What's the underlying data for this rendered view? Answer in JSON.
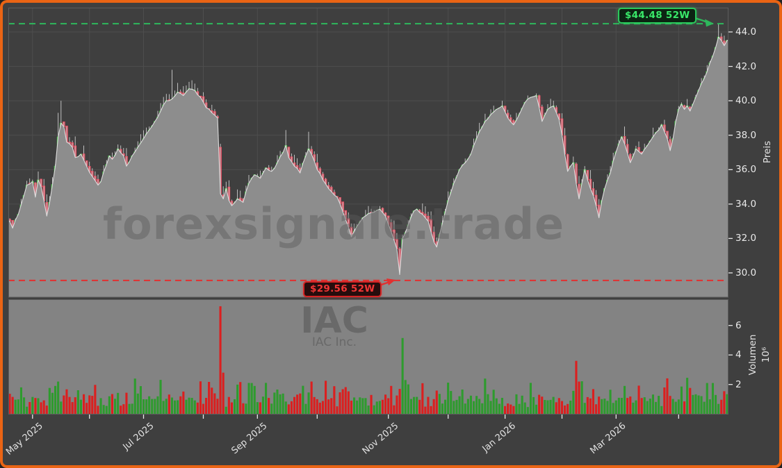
{
  "watermarks": {
    "brand": "forexsignale.trade",
    "symbol": "IAC",
    "symbol_name": "IAC Inc."
  },
  "colors": {
    "figure_border": "#ea6414",
    "background": "#3f3f3f",
    "volume_background": "#838383",
    "grid": "#4e4e4e",
    "frame": "#5c5c5c",
    "area_fill": "#8d8d8d",
    "area_edge": "#dcdcdc",
    "candle_up_stroke": "#4ec94e",
    "candle_up_fill": "rgba(60,190,60,0.38)",
    "candle_down_stroke": "#f25266",
    "candle_down_fill": "rgba(250,145,158,0.55)",
    "wick": "#cfcfcf",
    "volume_up": "#2e9b2e",
    "volume_down": "#db1f1f",
    "high_line": "#2eb85c",
    "low_line": "#e23030",
    "axis_text": "#e9e9e9",
    "tick_mark": "#e8e8e8",
    "watermark_text": "rgba(90,90,90,0.45)",
    "symbol_watermark_text": "rgba(80,80,80,0.5)"
  },
  "chart_data": {
    "type": "candlestick_with_volume",
    "symbol": "IAC",
    "company": "IAC Inc.",
    "watermark": "forexsignale.trade",
    "price_axis": {
      "label": "Preis",
      "ticks": [
        {
          "value": 44,
          "label": "44.0"
        },
        {
          "value": 42,
          "label": "42.0"
        },
        {
          "value": 40,
          "label": "40.0"
        },
        {
          "value": 38,
          "label": "38.0"
        },
        {
          "value": 36,
          "label": "36.0"
        },
        {
          "value": 34,
          "label": "34.0"
        },
        {
          "value": 32,
          "label": "32.0"
        },
        {
          "value": 30,
          "label": "30.0"
        }
      ]
    },
    "volume_axis": {
      "label": "Volumen",
      "exponent_label": "10⁶",
      "ticks": [
        {
          "value": 6,
          "label": "6"
        },
        {
          "value": 4,
          "label": "4"
        },
        {
          "value": 2,
          "label": "2"
        }
      ]
    },
    "x_axis": {
      "ticks": [
        {
          "day": 8,
          "label": "May 2025"
        },
        {
          "day": 28,
          "label": ""
        },
        {
          "day": 47,
          "label": "Jul 2025"
        },
        {
          "day": 68,
          "label": ""
        },
        {
          "day": 87,
          "label": "Sep 2025"
        },
        {
          "day": 108,
          "label": ""
        },
        {
          "day": 133,
          "label": "Nov 2025"
        },
        {
          "day": 154,
          "label": ""
        },
        {
          "day": 174,
          "label": "Jan 2026"
        },
        {
          "day": 194,
          "label": ""
        },
        {
          "day": 213,
          "label": "Mar 2026"
        },
        {
          "day": 235,
          "label": ""
        }
      ]
    },
    "annotations": {
      "high": {
        "label": "$44.48 52W",
        "price": 44.48,
        "day": 249
      },
      "low": {
        "label": "$29.56 52W",
        "price": 29.56,
        "day": 137
      }
    },
    "candle_count": 253,
    "close_keypoints": [
      [
        0,
        33.0
      ],
      [
        1,
        32.6
      ],
      [
        3,
        33.4
      ],
      [
        5,
        34.5
      ],
      [
        6,
        35.1
      ],
      [
        8,
        35.3
      ],
      [
        9,
        34.4
      ],
      [
        10,
        35.4
      ],
      [
        11,
        35.0
      ],
      [
        13,
        33.3
      ],
      [
        14,
        34.1
      ],
      [
        16,
        36.2
      ],
      [
        17,
        37.9
      ],
      [
        18,
        38.7
      ],
      [
        19,
        38.5
      ],
      [
        20,
        37.6
      ],
      [
        22,
        37.3
      ],
      [
        23,
        36.7
      ],
      [
        25,
        36.9
      ],
      [
        27,
        36.2
      ],
      [
        29,
        35.6
      ],
      [
        31,
        35.1
      ],
      [
        32,
        35.3
      ],
      [
        34,
        36.3
      ],
      [
        35,
        36.8
      ],
      [
        36,
        36.6
      ],
      [
        38,
        37.2
      ],
      [
        40,
        36.8
      ],
      [
        41,
        36.2
      ],
      [
        43,
        36.8
      ],
      [
        45,
        37.3
      ],
      [
        47,
        37.8
      ],
      [
        49,
        38.3
      ],
      [
        51,
        38.8
      ],
      [
        53,
        39.4
      ],
      [
        55,
        40.0
      ],
      [
        57,
        40.1
      ],
      [
        59,
        40.5
      ],
      [
        61,
        40.3
      ],
      [
        63,
        40.7
      ],
      [
        65,
        40.6
      ],
      [
        67,
        40.2
      ],
      [
        69,
        39.6
      ],
      [
        71,
        39.3
      ],
      [
        73,
        39.0
      ],
      [
        74,
        34.6
      ],
      [
        75,
        34.3
      ],
      [
        76,
        34.9
      ],
      [
        77,
        34.2
      ],
      [
        78,
        33.9
      ],
      [
        80,
        34.3
      ],
      [
        82,
        34.1
      ],
      [
        84,
        35.2
      ],
      [
        86,
        35.7
      ],
      [
        88,
        35.5
      ],
      [
        90,
        36.1
      ],
      [
        92,
        35.9
      ],
      [
        94,
        36.4
      ],
      [
        96,
        37.0
      ],
      [
        97,
        37.4
      ],
      [
        98,
        36.7
      ],
      [
        100,
        36.2
      ],
      [
        102,
        35.8
      ],
      [
        104,
        36.8
      ],
      [
        105,
        37.2
      ],
      [
        106,
        36.9
      ],
      [
        108,
        36.0
      ],
      [
        110,
        35.4
      ],
      [
        112,
        34.9
      ],
      [
        115,
        34.4
      ],
      [
        118,
        33.1
      ],
      [
        120,
        32.1
      ],
      [
        122,
        32.7
      ],
      [
        124,
        33.2
      ],
      [
        127,
        33.5
      ],
      [
        130,
        33.7
      ],
      [
        132,
        33.3
      ],
      [
        134,
        32.4
      ],
      [
        136,
        31.4
      ],
      [
        137,
        29.9
      ],
      [
        138,
        32.0
      ],
      [
        140,
        32.8
      ],
      [
        142,
        33.6
      ],
      [
        143,
        33.7
      ],
      [
        145,
        33.4
      ],
      [
        147,
        33.0
      ],
      [
        149,
        31.8
      ],
      [
        150,
        31.5
      ],
      [
        152,
        32.9
      ],
      [
        154,
        34.2
      ],
      [
        156,
        35.2
      ],
      [
        158,
        36.0
      ],
      [
        160,
        36.4
      ],
      [
        162,
        36.9
      ],
      [
        164,
        37.8
      ],
      [
        165,
        38.2
      ],
      [
        167,
        38.8
      ],
      [
        169,
        39.2
      ],
      [
        171,
        39.5
      ],
      [
        173,
        39.7
      ],
      [
        175,
        39.0
      ],
      [
        177,
        38.6
      ],
      [
        179,
        39.2
      ],
      [
        181,
        39.9
      ],
      [
        183,
        40.2
      ],
      [
        185,
        40.3
      ],
      [
        187,
        38.8
      ],
      [
        189,
        39.5
      ],
      [
        191,
        39.7
      ],
      [
        193,
        38.9
      ],
      [
        194,
        38.0
      ],
      [
        195,
        36.9
      ],
      [
        196,
        35.9
      ],
      [
        197,
        36.2
      ],
      [
        198,
        36.4
      ],
      [
        199,
        35.2
      ],
      [
        200,
        34.3
      ],
      [
        201,
        35.2
      ],
      [
        202,
        36.0
      ],
      [
        203,
        35.4
      ],
      [
        204,
        34.9
      ],
      [
        205,
        34.5
      ],
      [
        206,
        33.9
      ],
      [
        207,
        33.2
      ],
      [
        208,
        34.2
      ],
      [
        209,
        34.9
      ],
      [
        210,
        35.4
      ],
      [
        211,
        35.8
      ],
      [
        212,
        36.5
      ],
      [
        214,
        37.5
      ],
      [
        215,
        37.9
      ],
      [
        216,
        37.5
      ],
      [
        218,
        36.4
      ],
      [
        220,
        37.2
      ],
      [
        222,
        36.9
      ],
      [
        224,
        37.4
      ],
      [
        226,
        37.9
      ],
      [
        228,
        38.3
      ],
      [
        229,
        38.6
      ],
      [
        230,
        38.2
      ],
      [
        231,
        37.8
      ],
      [
        232,
        37.1
      ],
      [
        233,
        37.8
      ],
      [
        234,
        38.8
      ],
      [
        235,
        39.5
      ],
      [
        236,
        39.8
      ],
      [
        237,
        39.5
      ],
      [
        238,
        39.7
      ],
      [
        239,
        39.4
      ],
      [
        240,
        39.8
      ],
      [
        241,
        40.2
      ],
      [
        242,
        40.6
      ],
      [
        243,
        41.0
      ],
      [
        244,
        41.3
      ],
      [
        245,
        41.7
      ],
      [
        246,
        42.2
      ],
      [
        247,
        42.6
      ],
      [
        248,
        43.1
      ],
      [
        249,
        43.7
      ],
      [
        250,
        43.5
      ],
      [
        251,
        43.2
      ],
      [
        252,
        43.5
      ]
    ],
    "special_candles": [
      {
        "day": 17,
        "high": 39.3
      },
      {
        "day": 18,
        "high": 40.0
      },
      {
        "day": 55,
        "high": 40.4
      },
      {
        "day": 57,
        "high": 41.8
      },
      {
        "day": 63,
        "high": 41.1
      },
      {
        "day": 65,
        "high": 41.0
      },
      {
        "day": 74,
        "open": 37.3,
        "high": 37.5,
        "low": 34.3,
        "close": 34.6
      },
      {
        "day": 97,
        "high": 38.3
      },
      {
        "day": 105,
        "high": 38.2
      },
      {
        "day": 137,
        "open": 31.4,
        "high": 31.5,
        "low": 29.56,
        "close": 29.9
      },
      {
        "day": 150,
        "low": 31.2
      },
      {
        "day": 216,
        "high": 38.5
      },
      {
        "day": 249,
        "open": 43.1,
        "high": 44.48,
        "low": 42.9,
        "close": 43.7
      }
    ],
    "volume_spikes": [
      {
        "day": 16,
        "value": 1.9,
        "dir": "up"
      },
      {
        "day": 17,
        "value": 2.2,
        "dir": "up"
      },
      {
        "day": 44,
        "value": 2.4,
        "dir": "up"
      },
      {
        "day": 74,
        "value": 7.3,
        "dir": "down"
      },
      {
        "day": 75,
        "value": 2.8,
        "dir": "down"
      },
      {
        "day": 86,
        "value": 1.9,
        "dir": "up"
      },
      {
        "day": 106,
        "value": 2.2,
        "dir": "down"
      },
      {
        "day": 137,
        "value": 1.7,
        "dir": "down"
      },
      {
        "day": 138,
        "value": 5.15,
        "dir": "up"
      },
      {
        "day": 139,
        "value": 2.3,
        "dir": "up"
      },
      {
        "day": 167,
        "value": 2.4,
        "dir": "up"
      },
      {
        "day": 199,
        "value": 3.6,
        "dir": "down"
      },
      {
        "day": 200,
        "value": 2.2,
        "dir": "down"
      },
      {
        "day": 216,
        "value": 1.9,
        "dir": "up"
      },
      {
        "day": 230,
        "value": 1.8,
        "dir": "down"
      },
      {
        "day": 245,
        "value": 2.1,
        "dir": "up"
      }
    ]
  }
}
